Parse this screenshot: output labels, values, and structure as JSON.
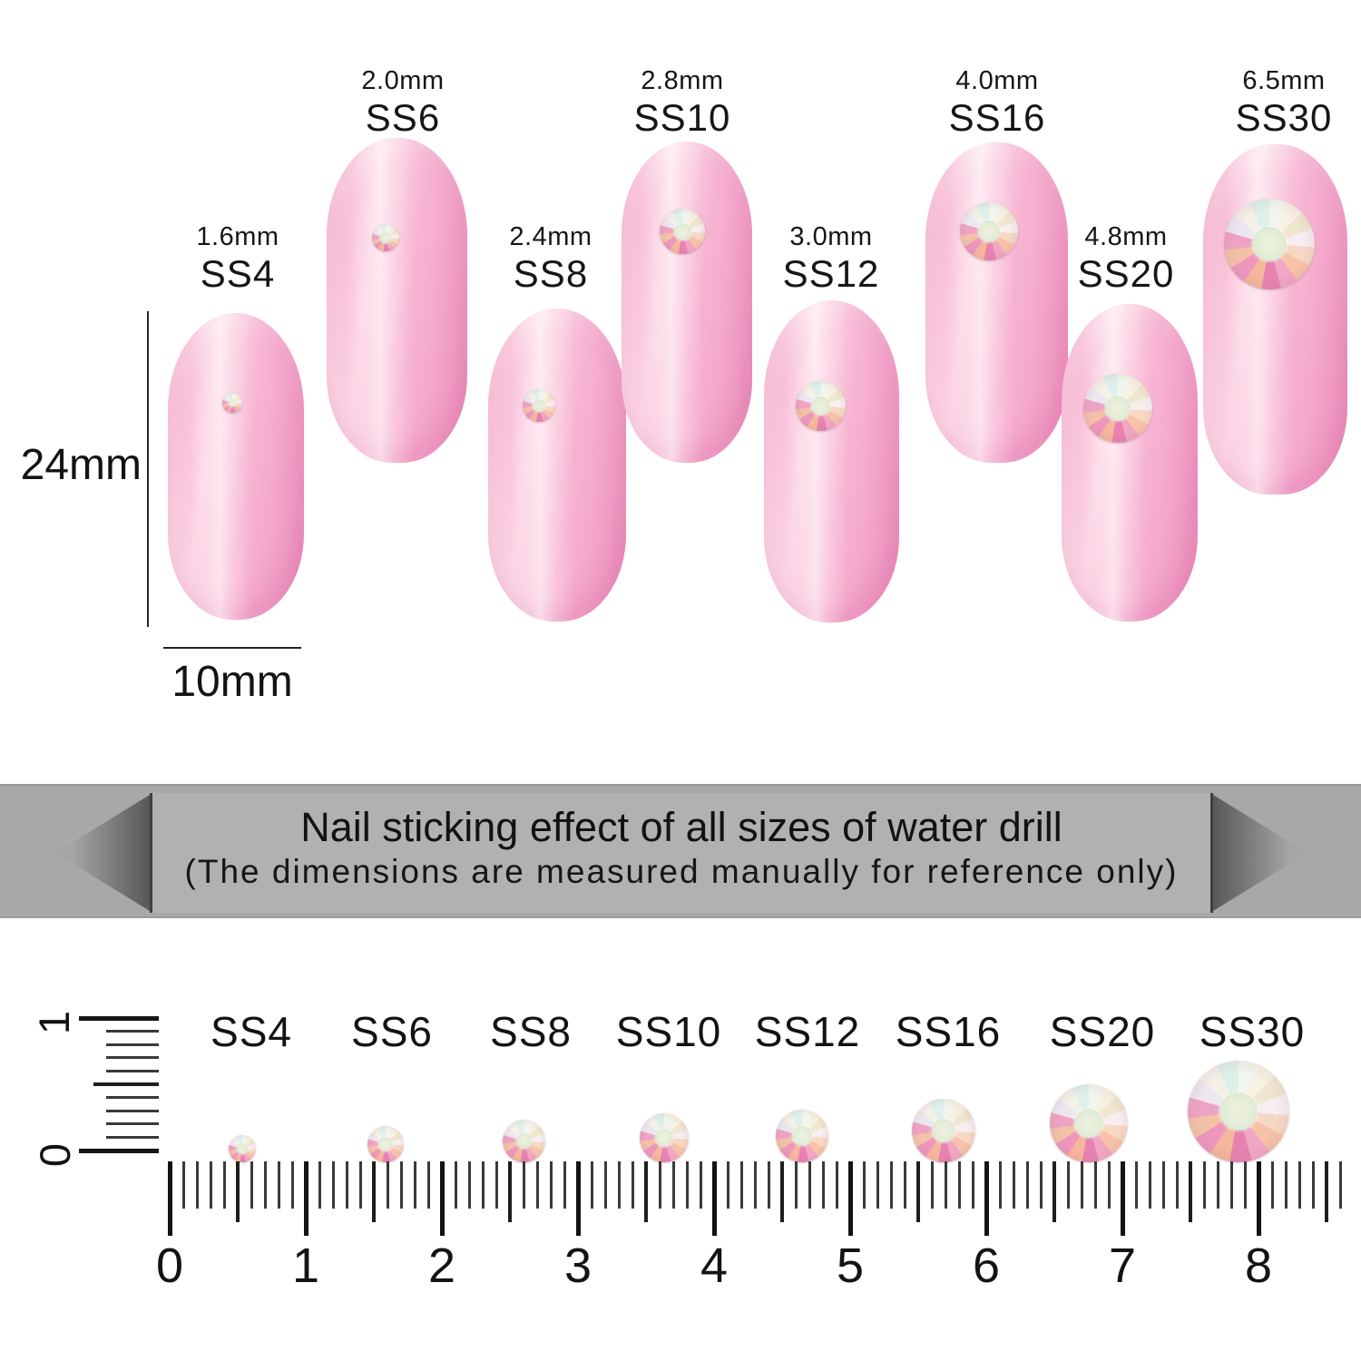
{
  "nails": [
    {
      "size_mm": "1.6mm",
      "size_label": "SS4"
    },
    {
      "size_mm": "2.0mm",
      "size_label": "SS6"
    },
    {
      "size_mm": "2.4mm",
      "size_label": "SS8"
    },
    {
      "size_mm": "2.8mm",
      "size_label": "SS10"
    },
    {
      "size_mm": "3.0mm",
      "size_label": "SS12"
    },
    {
      "size_mm": "4.0mm",
      "size_label": "SS16"
    },
    {
      "size_mm": "4.8mm",
      "size_label": "SS20"
    },
    {
      "size_mm": "6.5mm",
      "size_label": "SS30"
    }
  ],
  "dimensions": {
    "nail_height": "24mm",
    "nail_width": "10mm"
  },
  "banner": {
    "title": "Nail sticking effect of all sizes of water drill",
    "subtitle": "(The dimensions are measured manually for reference only)"
  },
  "ruler": {
    "vertical_numbers": [
      "1",
      "0"
    ],
    "horizontal_numbers": [
      "0",
      "1",
      "2",
      "3",
      "4",
      "5",
      "6",
      "7",
      "8"
    ],
    "gem_labels": [
      "SS4",
      "SS6",
      "SS8",
      "SS10",
      "SS12",
      "SS16",
      "SS20",
      "SS30"
    ]
  },
  "colors": {
    "nail_pink": "#f7b4d2",
    "banner_gray": "#a8a8a8",
    "banner_inner_gray": "#b1b1b1",
    "text": "#151515",
    "gem_center": "#e3ecd6",
    "gem_pink_facet": "#e782b1"
  }
}
